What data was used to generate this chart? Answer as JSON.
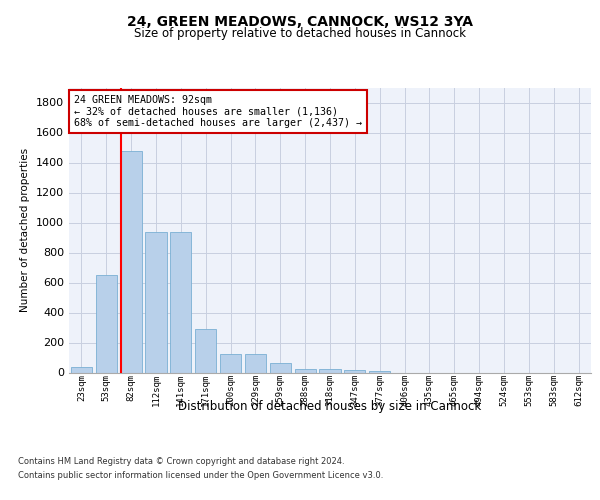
{
  "title1": "24, GREEN MEADOWS, CANNOCK, WS12 3YA",
  "title2": "Size of property relative to detached houses in Cannock",
  "xlabel": "Distribution of detached houses by size in Cannock",
  "ylabel": "Number of detached properties",
  "categories": [
    "23sqm",
    "53sqm",
    "82sqm",
    "112sqm",
    "141sqm",
    "171sqm",
    "200sqm",
    "229sqm",
    "259sqm",
    "288sqm",
    "318sqm",
    "347sqm",
    "377sqm",
    "406sqm",
    "435sqm",
    "465sqm",
    "494sqm",
    "524sqm",
    "553sqm",
    "583sqm",
    "612sqm"
  ],
  "values": [
    40,
    650,
    1480,
    940,
    940,
    290,
    125,
    125,
    65,
    25,
    25,
    15,
    10,
    0,
    0,
    0,
    0,
    0,
    0,
    0,
    0
  ],
  "bar_color": "#b8d0ea",
  "bar_edge_color": "#7aafd4",
  "ylim": [
    0,
    1900
  ],
  "yticks": [
    0,
    200,
    400,
    600,
    800,
    1000,
    1200,
    1400,
    1600,
    1800
  ],
  "annotation_text": "24 GREEN MEADOWS: 92sqm\n← 32% of detached houses are smaller (1,136)\n68% of semi-detached houses are larger (2,437) →",
  "annotation_box_color": "#ffffff",
  "annotation_box_edge": "#cc0000",
  "footer1": "Contains HM Land Registry data © Crown copyright and database right 2024.",
  "footer2": "Contains public sector information licensed under the Open Government Licence v3.0.",
  "bg_color": "#eef2fa",
  "grid_color": "#c8cfe0"
}
